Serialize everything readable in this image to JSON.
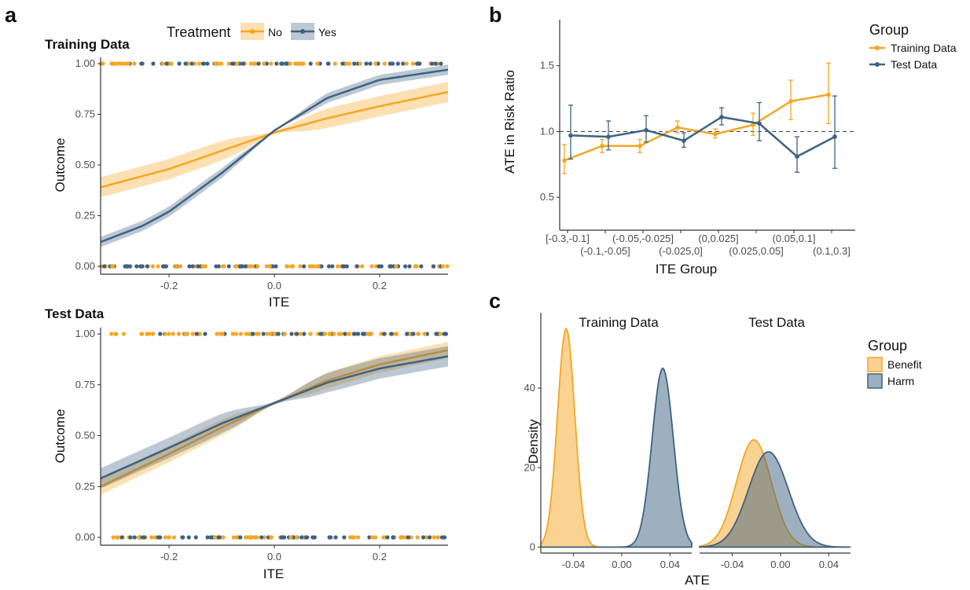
{
  "colors": {
    "no": "#F5A623",
    "yes": "#3E6282",
    "benefit": "#F5A623",
    "harm": "#3E6282"
  },
  "panels": {
    "a": "a",
    "b": "b",
    "c": "c"
  },
  "chart_data": [
    {
      "id": "a-train",
      "type": "line",
      "title": "Training Data",
      "xlabel": "ITE",
      "ylabel": "Outcome",
      "xlim": [
        -0.33,
        0.33
      ],
      "ylim": [
        0,
        1
      ],
      "xticks": [
        -0.2,
        0.0,
        0.2
      ],
      "xtick_labels": [
        "-0.2",
        "0.0",
        "0.2"
      ],
      "yticks": [
        0,
        0.25,
        0.5,
        0.75,
        1
      ],
      "ytick_labels": [
        "0.00",
        "0.25",
        "0.50",
        "0.75",
        "1.00"
      ],
      "legend": {
        "title": "Treatment",
        "placement": "top",
        "items": [
          "No",
          "Yes"
        ]
      },
      "series": [
        {
          "name": "No",
          "x": [
            -0.33,
            -0.2,
            -0.1,
            0.0,
            0.1,
            0.2,
            0.33
          ],
          "y": [
            0.39,
            0.48,
            0.57,
            0.66,
            0.73,
            0.79,
            0.86
          ],
          "band": 0.05
        },
        {
          "name": "Yes",
          "x": [
            -0.33,
            -0.25,
            -0.2,
            -0.1,
            0.0,
            0.1,
            0.2,
            0.33
          ],
          "y": [
            0.12,
            0.2,
            0.27,
            0.46,
            0.67,
            0.83,
            0.92,
            0.97
          ],
          "band": 0.025
        }
      ]
    },
    {
      "id": "a-test",
      "type": "line",
      "title": "Test Data",
      "xlabel": "ITE",
      "ylabel": "Outcome",
      "xlim": [
        -0.33,
        0.33
      ],
      "ylim": [
        0,
        1
      ],
      "xticks": [
        -0.2,
        0.0,
        0.2
      ],
      "xtick_labels": [
        "-0.2",
        "0.0",
        "0.2"
      ],
      "yticks": [
        0,
        0.25,
        0.5,
        0.75,
        1
      ],
      "ytick_labels": [
        "0.00",
        "0.25",
        "0.50",
        "0.75",
        "1.00"
      ],
      "series": [
        {
          "name": "No",
          "x": [
            -0.33,
            -0.2,
            -0.1,
            0.0,
            0.1,
            0.2,
            0.33
          ],
          "y": [
            0.25,
            0.41,
            0.54,
            0.66,
            0.77,
            0.85,
            0.92
          ],
          "band": 0.04
        },
        {
          "name": "Yes",
          "x": [
            -0.33,
            -0.2,
            -0.1,
            0.0,
            0.1,
            0.2,
            0.33
          ],
          "y": [
            0.29,
            0.44,
            0.56,
            0.66,
            0.76,
            0.83,
            0.89
          ],
          "band": 0.05
        }
      ]
    },
    {
      "id": "b",
      "type": "line",
      "xlabel": "ITE Group",
      "ylabel": "ATE in Risk Ratio",
      "ylim": [
        0.25,
        1.85
      ],
      "yticks": [
        0.5,
        1.0,
        1.5
      ],
      "ytick_labels": [
        "0.5",
        "1.0",
        "1.5"
      ],
      "reference_line": 1.0,
      "categories": [
        "[-0.3,-0.1]",
        "(-0.1,-0.05]",
        "(-0.05,-0.025]",
        "(-0.025,0]",
        "(0,0.025]",
        "(0.025,0.05]",
        "(0.05,0.1]",
        "(0.1,0.3]"
      ],
      "legend": {
        "title": "Group",
        "placement": "right",
        "items": [
          "Training Data",
          "Test Data"
        ]
      },
      "series": [
        {
          "name": "Training Data",
          "values": [
            0.78,
            0.89,
            0.89,
            1.03,
            0.98,
            1.05,
            1.23,
            1.28
          ],
          "lower": [
            0.68,
            0.84,
            0.84,
            0.99,
            0.95,
            0.97,
            1.09,
            1.06
          ],
          "upper": [
            0.9,
            0.94,
            0.94,
            1.08,
            1.02,
            1.14,
            1.39,
            1.52
          ]
        },
        {
          "name": "Test Data",
          "values": [
            0.97,
            0.96,
            1.01,
            0.93,
            1.11,
            1.06,
            0.81,
            0.96
          ],
          "lower": [
            0.79,
            0.86,
            0.92,
            0.88,
            1.05,
            0.93,
            0.69,
            0.72
          ],
          "upper": [
            1.2,
            1.08,
            1.12,
            0.99,
            1.18,
            1.22,
            0.96,
            1.27
          ]
        }
      ]
    },
    {
      "id": "c",
      "type": "area",
      "xlabel": "ATE",
      "ylabel": "Density",
      "facets": [
        "Training Data",
        "Test Data"
      ],
      "ylim": [
        -1.5,
        59
      ],
      "yticks": [
        0,
        20,
        40
      ],
      "ytick_labels": [
        "0",
        "20",
        "40"
      ],
      "xlim_training": [
        -0.067,
        0.058
      ],
      "xlim_test": [
        -0.067,
        0.058
      ],
      "xticks": [
        -0.04,
        0.0,
        0.04
      ],
      "xtick_labels": [
        "-0.04",
        "0.00",
        "0.04"
      ],
      "legend": {
        "title": "Group",
        "placement": "right",
        "items": [
          "Benefit",
          "Harm"
        ]
      },
      "series": [
        {
          "facet": "Training Data",
          "name": "Benefit",
          "mean": -0.046,
          "sd": 0.0072,
          "peak": 55
        },
        {
          "facet": "Training Data",
          "name": "Harm",
          "mean": 0.034,
          "sd": 0.0088,
          "peak": 45
        },
        {
          "facet": "Test Data",
          "name": "Benefit",
          "mean": -0.022,
          "sd": 0.0145,
          "peak": 27
        },
        {
          "facet": "Test Data",
          "name": "Harm",
          "mean": -0.01,
          "sd": 0.0165,
          "peak": 24
        }
      ]
    }
  ]
}
